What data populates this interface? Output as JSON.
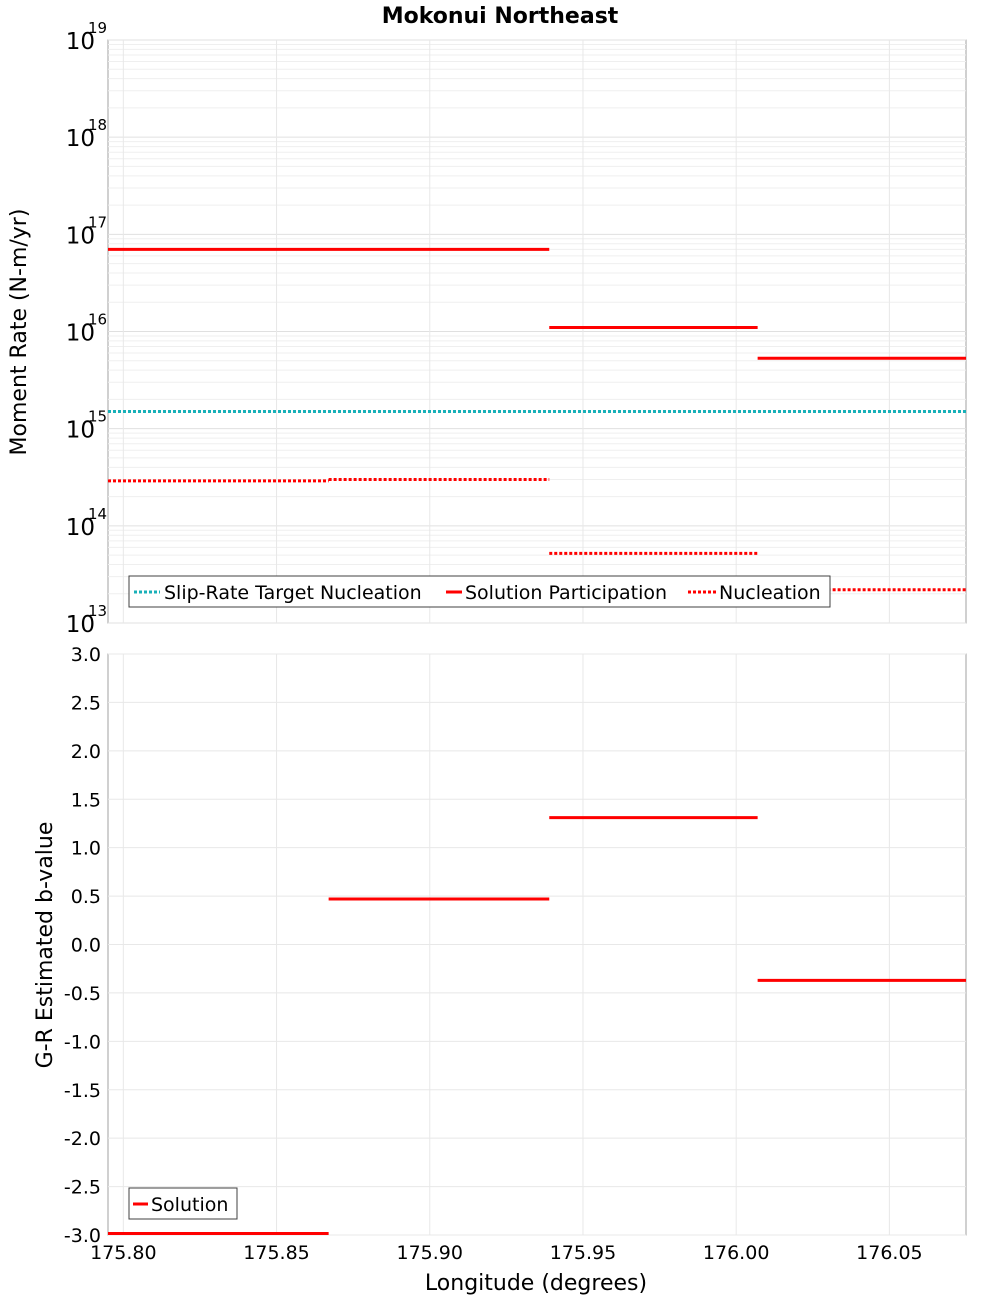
{
  "title": "Mokonui Northeast",
  "xlabel": "Longitude (degrees)",
  "chart_data": [
    {
      "type": "line",
      "scale": "log",
      "ylabel": "Moment Rate (N-m/yr)",
      "xlim": [
        175.795,
        176.075
      ],
      "ylim": [
        10000000000000.0,
        1e+19
      ],
      "y_tick_exponents": [
        "13",
        "14",
        "15",
        "16",
        "17",
        "18",
        "19"
      ],
      "legend": {
        "placement": "bottom-left",
        "entries": [
          "Slip-Rate Target Nucleation",
          "Solution Participation",
          "Nucleation"
        ]
      },
      "series": [
        {
          "name": "Slip-Rate Target Nucleation",
          "style": "dotted",
          "color": "#18b0b8",
          "segments": [
            [
              175.795,
              176.075,
              1500000000000000.0
            ]
          ]
        },
        {
          "name": "Solution Participation",
          "style": "solid",
          "color": "#ff0000",
          "segments": [
            [
              175.795,
              175.939,
              7e+16
            ],
            [
              175.939,
              176.007,
              1.1e+16
            ],
            [
              176.007,
              176.075,
              5300000000000000.0
            ]
          ]
        },
        {
          "name": "Nucleation",
          "style": "dotted",
          "color": "#ff0000",
          "segments": [
            [
              175.795,
              175.867,
              290000000000000.0
            ],
            [
              175.867,
              175.939,
              300000000000000.0
            ],
            [
              175.939,
              176.007,
              52000000000000.0
            ],
            [
              176.007,
              176.075,
              22000000000000.0
            ]
          ]
        }
      ]
    },
    {
      "type": "line",
      "ylabel": "G-R Estimated b-value",
      "xlim": [
        175.795,
        176.075
      ],
      "ylim": [
        -3.0,
        3.0
      ],
      "x_ticks": [
        "175.80",
        "175.85",
        "175.90",
        "175.95",
        "176.00",
        "176.05"
      ],
      "y_ticks": [
        "3.0",
        "2.5",
        "2.0",
        "1.5",
        "1.0",
        "0.5",
        "0.0",
        "-0.5",
        "-1.0",
        "-1.5",
        "-2.0",
        "-2.5",
        "-3.0"
      ],
      "legend": {
        "placement": "bottom-left",
        "entries": [
          "Solution"
        ]
      },
      "series": [
        {
          "name": "Solution",
          "style": "solid",
          "color": "#ff0000",
          "segments": [
            [
              175.795,
              175.867,
              -3.0
            ],
            [
              175.867,
              175.939,
              0.47
            ],
            [
              175.939,
              176.007,
              1.31
            ],
            [
              176.007,
              176.075,
              -0.37
            ]
          ]
        }
      ]
    }
  ]
}
